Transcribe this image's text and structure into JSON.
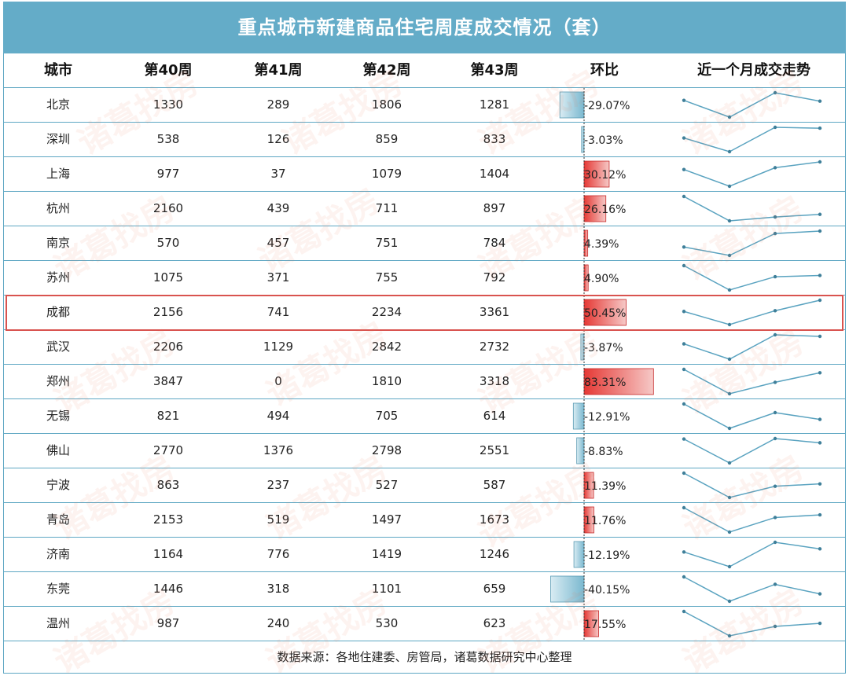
{
  "title": "重点城市新建商品住宅周度成交情况（套）",
  "headers": [
    "城市",
    "第40周",
    "第41周",
    "第42周",
    "第43周",
    "环比",
    "近一个月成交走势"
  ],
  "footer": "数据来源：各地住建委、房管局，诸葛数据研究中心整理",
  "watermark": "诸葛找房",
  "colors": {
    "header": "#64acc8",
    "positive": "#e53935",
    "negative": "#7ab8cf",
    "sparkline": "#5aa3c0",
    "highlight": "#d9534f"
  },
  "highlighted_city": "成都",
  "chart_data": {
    "type": "table",
    "title": "重点城市新建商品住宅周度成交情况（套）",
    "columns": [
      "城市",
      "第40周",
      "第41周",
      "第42周",
      "第43周",
      "环比"
    ],
    "rows": [
      {
        "city": "北京",
        "w40": 1330,
        "w41": 289,
        "w42": 1806,
        "w43": 1281,
        "change": "-29.07%",
        "change_value": -29.07
      },
      {
        "city": "深圳",
        "w40": 538,
        "w41": 126,
        "w42": 859,
        "w43": 833,
        "change": "-3.03%",
        "change_value": -3.03
      },
      {
        "city": "上海",
        "w40": 977,
        "w41": 37,
        "w42": 1079,
        "w43": 1404,
        "change": "30.12%",
        "change_value": 30.12
      },
      {
        "city": "杭州",
        "w40": 2160,
        "w41": 439,
        "w42": 711,
        "w43": 897,
        "change": "26.16%",
        "change_value": 26.16
      },
      {
        "city": "南京",
        "w40": 570,
        "w41": 457,
        "w42": 751,
        "w43": 784,
        "change": "4.39%",
        "change_value": 4.39
      },
      {
        "city": "苏州",
        "w40": 1075,
        "w41": 371,
        "w42": 755,
        "w43": 792,
        "change": "4.90%",
        "change_value": 4.9
      },
      {
        "city": "成都",
        "w40": 2156,
        "w41": 741,
        "w42": 2234,
        "w43": 3361,
        "change": "50.45%",
        "change_value": 50.45
      },
      {
        "city": "武汉",
        "w40": 2206,
        "w41": 1129,
        "w42": 2842,
        "w43": 2732,
        "change": "-3.87%",
        "change_value": -3.87
      },
      {
        "city": "郑州",
        "w40": 3847,
        "w41": 0,
        "w42": 1810,
        "w43": 3318,
        "change": "83.31%",
        "change_value": 83.31
      },
      {
        "city": "无锡",
        "w40": 821,
        "w41": 494,
        "w42": 705,
        "w43": 614,
        "change": "-12.91%",
        "change_value": -12.91
      },
      {
        "city": "佛山",
        "w40": 2770,
        "w41": 1376,
        "w42": 2798,
        "w43": 2551,
        "change": "-8.83%",
        "change_value": -8.83
      },
      {
        "city": "宁波",
        "w40": 863,
        "w41": 237,
        "w42": 527,
        "w43": 587,
        "change": "11.39%",
        "change_value": 11.39
      },
      {
        "city": "青岛",
        "w40": 2153,
        "w41": 519,
        "w42": 1497,
        "w43": 1673,
        "change": "11.76%",
        "change_value": 11.76
      },
      {
        "city": "济南",
        "w40": 1164,
        "w41": 776,
        "w42": 1419,
        "w43": 1246,
        "change": "-12.19%",
        "change_value": -12.19
      },
      {
        "city": "东莞",
        "w40": 1446,
        "w41": 318,
        "w42": 1101,
        "w43": 659,
        "change": "-40.15%",
        "change_value": -40.15
      },
      {
        "city": "温州",
        "w40": 987,
        "w41": 240,
        "w42": 530,
        "w43": 623,
        "change": "17.55%",
        "change_value": 17.55
      }
    ]
  }
}
